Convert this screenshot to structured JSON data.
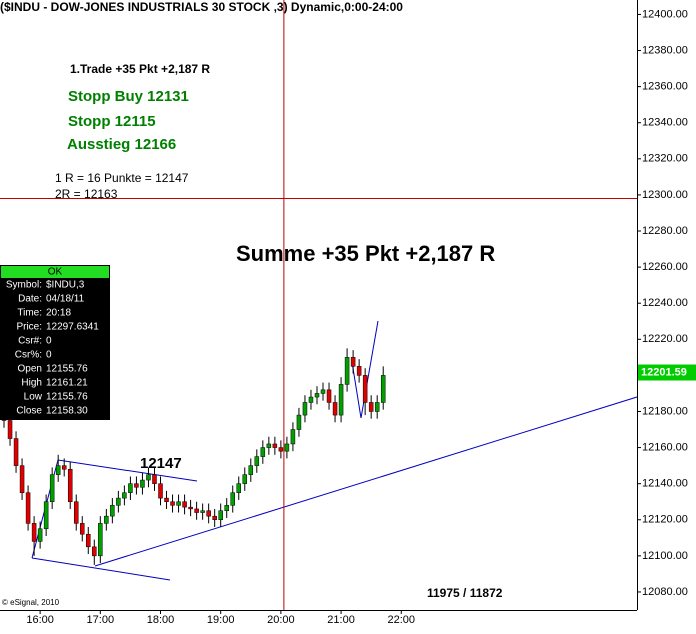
{
  "chart_data": {
    "type": "candlestick",
    "title": "($INDU - DOW-JONES INDUSTRIALS 30 STOCK ,3) Dynamic,0:00-24:00",
    "x": [
      924,
      930,
      936,
      942,
      948,
      954,
      960,
      966,
      972,
      978,
      984,
      990,
      996,
      1002,
      1008,
      1014,
      1020,
      1026,
      1032,
      1038,
      1044,
      1050,
      1056,
      1062,
      1068,
      1074,
      1080,
      1086,
      1092,
      1098,
      1104,
      1110,
      1116,
      1122,
      1128,
      1134,
      1140,
      1146,
      1152,
      1158,
      1164,
      1170,
      1176,
      1182,
      1188,
      1194,
      1200,
      1206,
      1212,
      1218,
      1224,
      1230,
      1236,
      1242,
      1248,
      1254,
      1260,
      1266,
      1272,
      1278,
      1284,
      1290,
      1296,
      1302
    ],
    "open": [
      12180,
      12175,
      12165,
      12150,
      12135,
      12118,
      12108,
      12115,
      12130,
      12145,
      12150,
      12148,
      12130,
      12118,
      12112,
      12105,
      12100,
      12118,
      12122,
      12128,
      12132,
      12135,
      12140,
      12138,
      12142,
      12145,
      12140,
      12132,
      12130,
      12128,
      12130,
      12127,
      12126,
      12124,
      12125,
      12122,
      12120,
      12125,
      12128,
      12135,
      12140,
      12145,
      12150,
      12155,
      12160,
      12162,
      12160,
      12158,
      12162,
      12170,
      12178,
      12185,
      12188,
      12190,
      12192,
      12185,
      12178,
      12195,
      12210,
      12205,
      12200,
      12185,
      12180,
      12185
    ],
    "high": [
      12184,
      12179,
      12169,
      12154,
      12139,
      12122,
      12119,
      12134,
      12149,
      12156,
      12154,
      12152,
      12134,
      12122,
      12116,
      12109,
      12122,
      12126,
      12132,
      12136,
      12139,
      12144,
      12144,
      12146,
      12149,
      12149,
      12144,
      12136,
      12134,
      12134,
      12134,
      12131,
      12130,
      12129,
      12129,
      12126,
      12129,
      12132,
      12139,
      12144,
      12149,
      12154,
      12159,
      12164,
      12166,
      12166,
      12164,
      12166,
      12174,
      12182,
      12189,
      12192,
      12194,
      12196,
      12196,
      12189,
      12199,
      12215,
      12214,
      12209,
      12204,
      12189,
      12189,
      12205
    ],
    "low": [
      12171,
      12161,
      12146,
      12131,
      12114,
      12100,
      12104,
      12111,
      12126,
      12141,
      12144,
      12126,
      12114,
      12108,
      12101,
      12095,
      12096,
      12114,
      12118,
      12124,
      12128,
      12131,
      12134,
      12134,
      12138,
      12136,
      12128,
      12126,
      12124,
      12124,
      12123,
      12122,
      12120,
      12120,
      12118,
      12116,
      12116,
      12121,
      12124,
      12131,
      12136,
      12141,
      12146,
      12151,
      12156,
      12156,
      12154,
      12154,
      12158,
      12166,
      12174,
      12181,
      12184,
      12186,
      12181,
      12174,
      12174,
      12191,
      12201,
      12196,
      12178,
      12176,
      12176,
      12181
    ],
    "close": [
      12175,
      12165,
      12150,
      12135,
      12118,
      12108,
      12115,
      12130,
      12145,
      12150,
      12148,
      12130,
      12118,
      12112,
      12105,
      12100,
      12118,
      12122,
      12128,
      12132,
      12135,
      12140,
      12138,
      12142,
      12145,
      12140,
      12132,
      12130,
      12128,
      12130,
      12127,
      12126,
      12124,
      12125,
      12122,
      12120,
      12125,
      12128,
      12135,
      12140,
      12145,
      12150,
      12155,
      12160,
      12162,
      12160,
      12158,
      12162,
      12170,
      12178,
      12185,
      12188,
      12190,
      12192,
      12185,
      12178,
      12195,
      12210,
      12205,
      12200,
      12185,
      12180,
      12185,
      12200
    ],
    "up_color": "#00a000",
    "down_color": "#e00000",
    "xlim": [
      920,
      1555
    ],
    "ylim": [
      12070,
      12408
    ],
    "xticks": [
      {
        "value": 960,
        "label": "16:00"
      },
      {
        "value": 1020,
        "label": "17:00"
      },
      {
        "value": 1080,
        "label": "18:00"
      },
      {
        "value": 1140,
        "label": "19:00"
      },
      {
        "value": 1200,
        "label": "20:00"
      },
      {
        "value": 1260,
        "label": "21:00"
      },
      {
        "value": 1320,
        "label": "22:00"
      }
    ],
    "yticks": [
      {
        "value": 12080,
        "label": "12080.00"
      },
      {
        "value": 12100,
        "label": "12100.00"
      },
      {
        "value": 12120,
        "label": "12120.00"
      },
      {
        "value": 12140,
        "label": "12140.00"
      },
      {
        "value": 12160,
        "label": "12160.00"
      },
      {
        "value": 12180,
        "label": "12180.00"
      },
      {
        "value": 12200,
        "label": "12200.00"
      },
      {
        "value": 12220,
        "label": "12220.00"
      },
      {
        "value": 12240,
        "label": "12240.00"
      },
      {
        "value": 12260,
        "label": "12260.00"
      },
      {
        "value": 12280,
        "label": "12280.00"
      },
      {
        "value": 12300,
        "label": "12300.00"
      },
      {
        "value": 12320,
        "label": "12320.00"
      },
      {
        "value": 12340,
        "label": "12340.00"
      },
      {
        "value": 12360,
        "label": "12360.00"
      },
      {
        "value": 12380,
        "label": "12380.00"
      },
      {
        "value": 12400,
        "label": "12400.00"
      }
    ],
    "last_price": 12201.59,
    "last_price_color": "#00cc00",
    "crosshair": {
      "x": 1203,
      "y": 12298
    },
    "annotations": [
      {
        "text": "1.Trade +35 Pkt +2,187 R",
        "color": "#000000"
      },
      {
        "text": "Stopp Buy 12131",
        "color": "#008000"
      },
      {
        "text": "Stopp 12115",
        "color": "#008000"
      },
      {
        "text": "Ausstieg 12166",
        "color": "#008000"
      },
      {
        "text": "1 R = 16 Punkte = 12147",
        "color": "#000000"
      },
      {
        "text": "2R = 12163",
        "color": "#000000"
      },
      {
        "text": "Summe +35 Pkt +2,187 R",
        "color": "#000000"
      },
      {
        "text": "12147",
        "color": "#000000"
      },
      {
        "text": "11975 / 11872",
        "color": "#000000"
      },
      {
        "text": "© eSignal, 2010",
        "color": "#000000"
      }
    ]
  },
  "data_window": {
    "header": "OK",
    "rows": [
      [
        "Symbol:",
        "$INDU,3"
      ],
      [
        "Date:",
        "04/18/11"
      ],
      [
        "Time:",
        "20:18"
      ],
      [
        "Price:",
        "12297.6341"
      ],
      [
        "Csr#:",
        "0"
      ],
      [
        "Csr%:",
        "0"
      ],
      [
        "Open",
        "12155.76"
      ],
      [
        "High",
        "12161.21"
      ],
      [
        "Low",
        "12155.76"
      ],
      [
        "Close",
        "12158.30"
      ]
    ]
  }
}
